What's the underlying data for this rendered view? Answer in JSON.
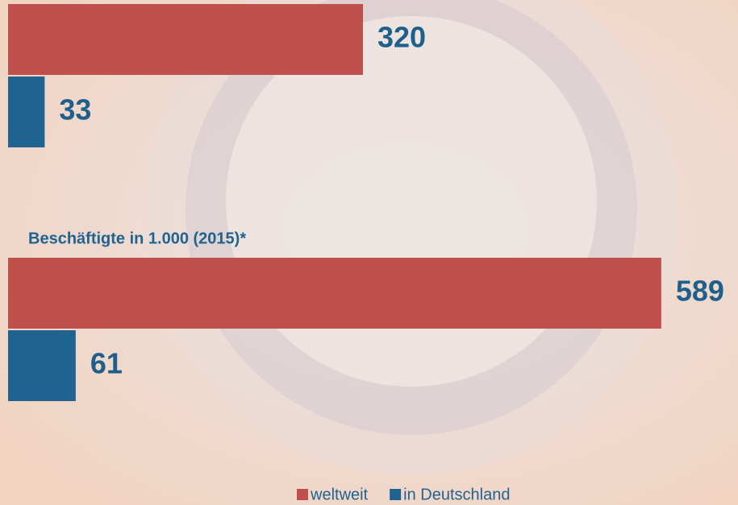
{
  "chart_data": {
    "type": "hbar",
    "categories": [
      null,
      "Beschäftigte in 1.000 (2015)*"
    ],
    "series": [
      {
        "name": "weltweit",
        "color": "#c0504d",
        "values": [
          320,
          589
        ]
      },
      {
        "name": "in Deutschland",
        "color": "#1f6391",
        "values": [
          33,
          61
        ]
      }
    ],
    "legend": "bottom"
  }
}
